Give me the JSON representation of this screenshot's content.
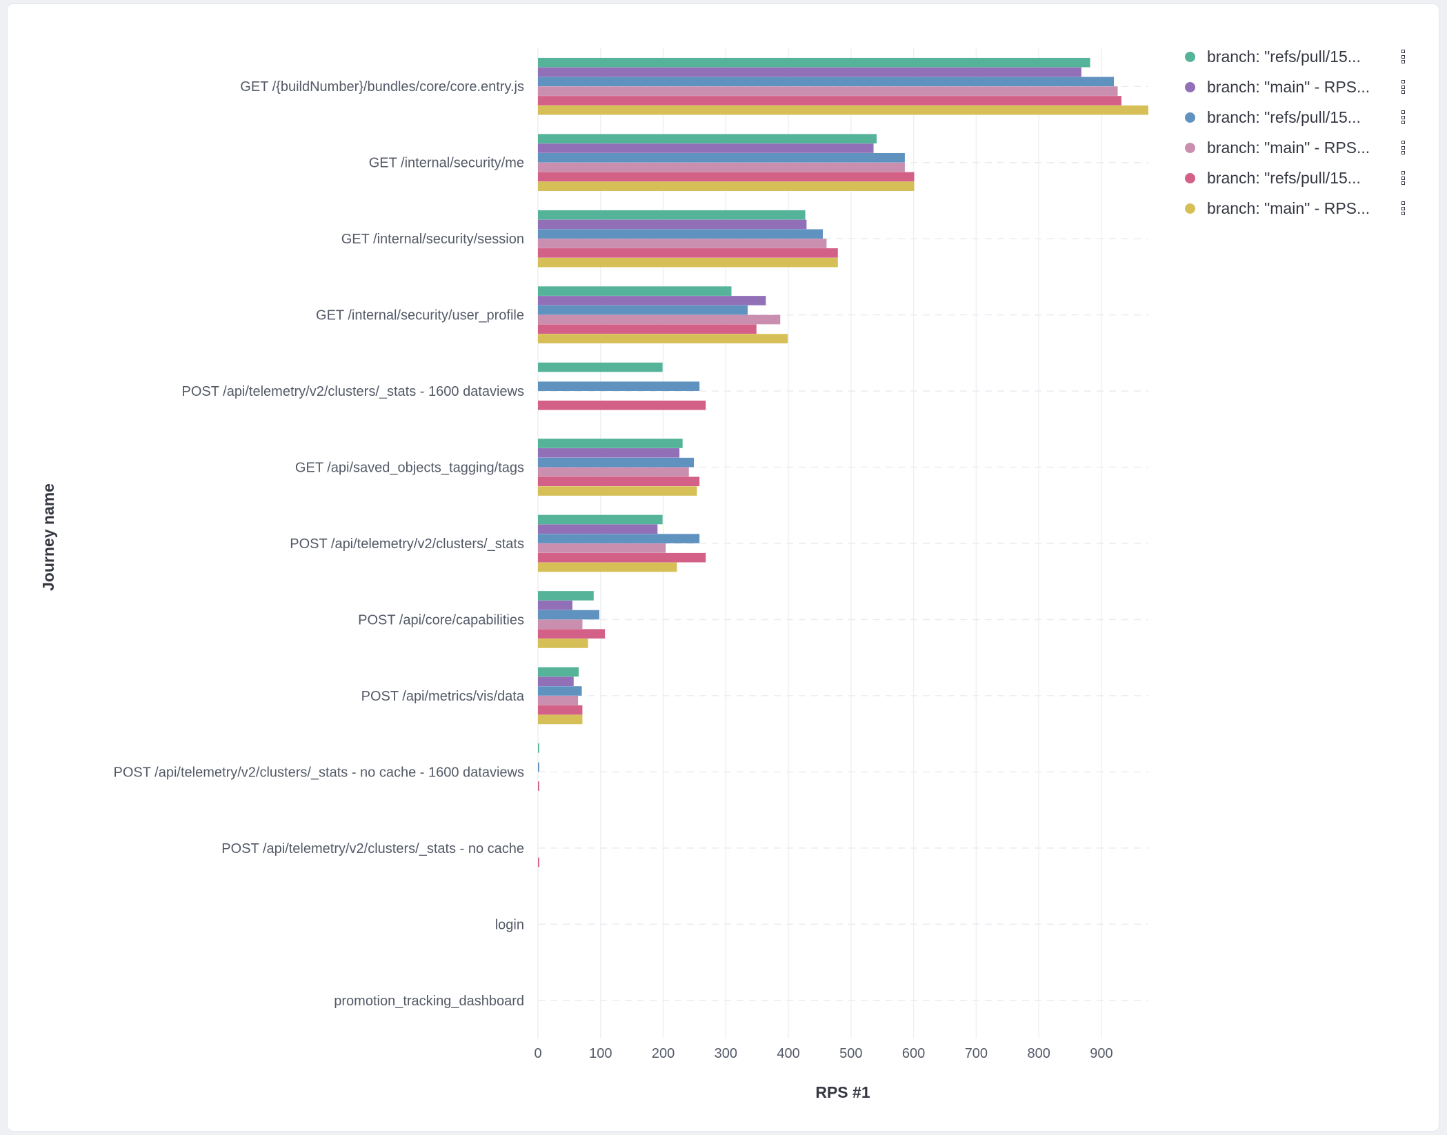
{
  "chart_data": {
    "type": "bar",
    "orientation": "horizontal",
    "title": "",
    "xlabel": "RPS #1",
    "ylabel": "Journey name",
    "xlim": [
      0,
      975
    ],
    "xticks": [
      0,
      100,
      200,
      300,
      400,
      500,
      600,
      700,
      800,
      900
    ],
    "grid": true,
    "legend_position": "right",
    "categories": [
      "GET /{buildNumber}/bundles/core/core.entry.js",
      "GET /internal/security/me",
      "GET /internal/security/session",
      "GET /internal/security/user_profile",
      "POST /api/telemetry/v2/clusters/_stats - 1600 dataviews",
      "GET /api/saved_objects_tagging/tags",
      "POST /api/telemetry/v2/clusters/_stats",
      "POST /api/core/capabilities",
      "POST /api/metrics/vis/data",
      "POST /api/telemetry/v2/clusters/_stats - no cache - 1600 dataviews",
      "POST /api/telemetry/v2/clusters/_stats - no cache",
      "login",
      "promotion_tracking_dashboard"
    ],
    "series": [
      {
        "name": "branch: \"refs/pull/15...",
        "color": "#54b399",
        "values": [
          882,
          541,
          427,
          309,
          199,
          231,
          199,
          89,
          65,
          2,
          null,
          null,
          null
        ]
      },
      {
        "name": "branch: \"main\" - RPS...",
        "color": "#9170b8",
        "values": [
          868,
          536,
          429,
          364,
          null,
          226,
          191,
          55,
          57,
          null,
          null,
          null,
          null
        ]
      },
      {
        "name": "branch: \"refs/pull/15...",
        "color": "#6092c0",
        "values": [
          920,
          586,
          455,
          335,
          258,
          249,
          258,
          98,
          70,
          2,
          null,
          null,
          null
        ]
      },
      {
        "name": "branch: \"main\" - RPS...",
        "color": "#ca8eae",
        "values": [
          926,
          586,
          461,
          387,
          null,
          241,
          204,
          71,
          64,
          null,
          null,
          null,
          null
        ]
      },
      {
        "name": "branch: \"refs/pull/15...",
        "color": "#d36086",
        "values": [
          932,
          601,
          479,
          349,
          268,
          258,
          268,
          107,
          71,
          2,
          2,
          null,
          null
        ]
      },
      {
        "name": "branch: \"main\" - RPS...",
        "color": "#d6bf57",
        "values": [
          975,
          601,
          479,
          399,
          null,
          254,
          222,
          80,
          71,
          null,
          null,
          null,
          null
        ]
      }
    ]
  }
}
